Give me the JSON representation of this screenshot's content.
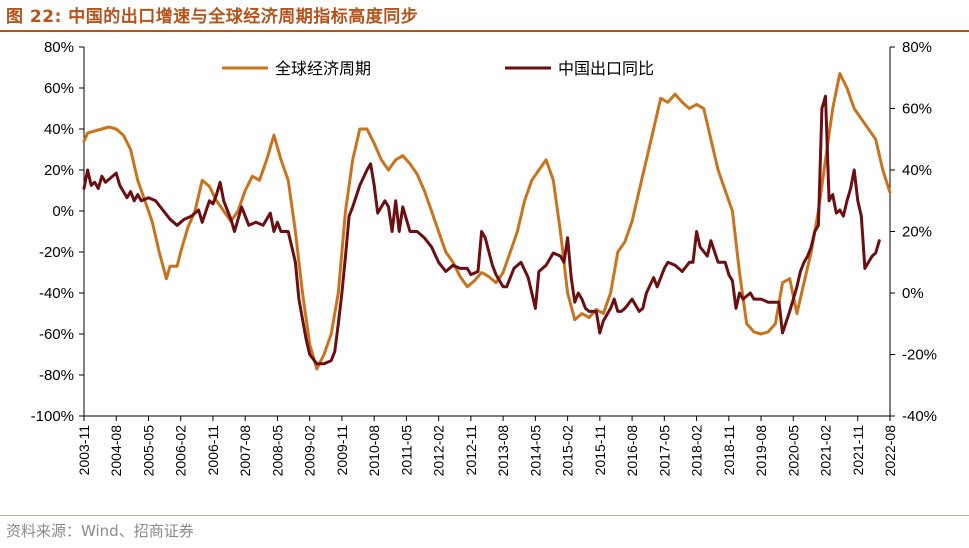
{
  "figure": {
    "title": "图 22:  中国的出口增速与全球经济周期指标高度同步",
    "source": "资料来源：Wind、招商证券"
  },
  "colors": {
    "title": "#b5531b",
    "global_cycle": "#c8731e",
    "china_exports": "#6b0f12",
    "axis": "#000000"
  },
  "chart_data": {
    "type": "line",
    "legend": {
      "position": "top"
    },
    "grid": false,
    "x_ticks": [
      "2003-11",
      "2004-08",
      "2005-05",
      "2006-02",
      "2006-11",
      "2007-08",
      "2008-05",
      "2009-02",
      "2009-11",
      "2010-08",
      "2011-05",
      "2012-02",
      "2012-11",
      "2013-08",
      "2014-05",
      "2015-02",
      "2015-11",
      "2016-08",
      "2017-05",
      "2018-02",
      "2018-11",
      "2019-08",
      "2020-05",
      "2021-02",
      "2021-11",
      "2022-08"
    ],
    "y_left": {
      "min": -100,
      "max": 80,
      "ticks": [
        "80%",
        "60%",
        "40%",
        "20%",
        "0%",
        "-20%",
        "-40%",
        "-60%",
        "-80%",
        "-100%"
      ]
    },
    "y_right": {
      "min": -40,
      "max": 80,
      "ticks": [
        "80%",
        "60%",
        "40%",
        "20%",
        "0%",
        "-20%",
        "-40%"
      ]
    },
    "series": [
      {
        "name": "全球经济周期",
        "axis": "left",
        "color": "#c8731e",
        "points": [
          [
            "2003-11",
            34
          ],
          [
            "2003-12",
            38
          ],
          [
            "2004-02",
            39
          ],
          [
            "2004-04",
            40
          ],
          [
            "2004-06",
            41
          ],
          [
            "2004-08",
            40
          ],
          [
            "2004-10",
            37
          ],
          [
            "2004-12",
            30
          ],
          [
            "2005-02",
            15
          ],
          [
            "2005-04",
            5
          ],
          [
            "2005-06",
            -5
          ],
          [
            "2005-08",
            -20
          ],
          [
            "2005-10",
            -33
          ],
          [
            "2005-11",
            -27
          ],
          [
            "2006-01",
            -27
          ],
          [
            "2006-02",
            -20
          ],
          [
            "2006-04",
            -8
          ],
          [
            "2006-06",
            0
          ],
          [
            "2006-08",
            15
          ],
          [
            "2006-10",
            12
          ],
          [
            "2006-12",
            5
          ],
          [
            "2007-02",
            0
          ],
          [
            "2007-04",
            -5
          ],
          [
            "2007-06",
            0
          ],
          [
            "2007-08",
            10
          ],
          [
            "2007-10",
            17
          ],
          [
            "2007-12",
            15
          ],
          [
            "2008-02",
            25
          ],
          [
            "2008-04",
            37
          ],
          [
            "2008-06",
            25
          ],
          [
            "2008-08",
            15
          ],
          [
            "2008-10",
            -10
          ],
          [
            "2008-12",
            -40
          ],
          [
            "2009-02",
            -65
          ],
          [
            "2009-04",
            -77
          ],
          [
            "2009-06",
            -70
          ],
          [
            "2009-08",
            -60
          ],
          [
            "2009-10",
            -40
          ],
          [
            "2009-12",
            0
          ],
          [
            "2010-02",
            25
          ],
          [
            "2010-04",
            40
          ],
          [
            "2010-06",
            40
          ],
          [
            "2010-08",
            33
          ],
          [
            "2010-10",
            25
          ],
          [
            "2010-12",
            20
          ],
          [
            "2011-02",
            25
          ],
          [
            "2011-04",
            27
          ],
          [
            "2011-06",
            23
          ],
          [
            "2011-08",
            18
          ],
          [
            "2011-10",
            10
          ],
          [
            "2011-12",
            0
          ],
          [
            "2012-02",
            -10
          ],
          [
            "2012-04",
            -20
          ],
          [
            "2012-06",
            -25
          ],
          [
            "2012-08",
            -32
          ],
          [
            "2012-10",
            -37
          ],
          [
            "2012-12",
            -34
          ],
          [
            "2013-02",
            -30
          ],
          [
            "2013-04",
            -32
          ],
          [
            "2013-06",
            -35
          ],
          [
            "2013-08",
            -30
          ],
          [
            "2013-10",
            -20
          ],
          [
            "2013-12",
            -10
          ],
          [
            "2014-02",
            5
          ],
          [
            "2014-04",
            15
          ],
          [
            "2014-06",
            20
          ],
          [
            "2014-08",
            25
          ],
          [
            "2014-10",
            15
          ],
          [
            "2014-12",
            -10
          ],
          [
            "2015-02",
            -40
          ],
          [
            "2015-04",
            -53
          ],
          [
            "2015-06",
            -50
          ],
          [
            "2015-08",
            -52
          ],
          [
            "2015-10",
            -48
          ],
          [
            "2015-12",
            -50
          ],
          [
            "2016-02",
            -40
          ],
          [
            "2016-04",
            -20
          ],
          [
            "2016-06",
            -15
          ],
          [
            "2016-08",
            -5
          ],
          [
            "2016-10",
            10
          ],
          [
            "2016-12",
            25
          ],
          [
            "2017-02",
            40
          ],
          [
            "2017-04",
            55
          ],
          [
            "2017-06",
            53
          ],
          [
            "2017-08",
            57
          ],
          [
            "2017-10",
            53
          ],
          [
            "2017-12",
            50
          ],
          [
            "2018-02",
            52
          ],
          [
            "2018-04",
            50
          ],
          [
            "2018-06",
            35
          ],
          [
            "2018-08",
            20
          ],
          [
            "2018-10",
            10
          ],
          [
            "2018-12",
            0
          ],
          [
            "2019-02",
            -30
          ],
          [
            "2019-04",
            -55
          ],
          [
            "2019-06",
            -59
          ],
          [
            "2019-08",
            -60
          ],
          [
            "2019-10",
            -59
          ],
          [
            "2019-12",
            -55
          ],
          [
            "2020-02",
            -35
          ],
          [
            "2020-04",
            -33
          ],
          [
            "2020-06",
            -50
          ],
          [
            "2020-08",
            -35
          ],
          [
            "2020-10",
            -20
          ],
          [
            "2020-12",
            0
          ],
          [
            "2021-02",
            25
          ],
          [
            "2021-04",
            50
          ],
          [
            "2021-06",
            67
          ],
          [
            "2021-08",
            60
          ],
          [
            "2021-10",
            50
          ],
          [
            "2021-12",
            45
          ],
          [
            "2022-02",
            40
          ],
          [
            "2022-04",
            35
          ],
          [
            "2022-06",
            20
          ],
          [
            "2022-08",
            9
          ]
        ]
      },
      {
        "name": "中国出口同比",
        "axis": "right",
        "color": "#6b0f12",
        "points": [
          [
            "2003-11",
            34
          ],
          [
            "2003-12",
            40
          ],
          [
            "2004-01",
            35
          ],
          [
            "2004-02",
            36
          ],
          [
            "2004-03",
            34
          ],
          [
            "2004-04",
            38
          ],
          [
            "2004-05",
            36
          ],
          [
            "2004-06",
            37
          ],
          [
            "2004-08",
            39
          ],
          [
            "2004-09",
            35
          ],
          [
            "2004-10",
            33
          ],
          [
            "2004-11",
            31
          ],
          [
            "2004-12",
            33
          ],
          [
            "2005-01",
            30
          ],
          [
            "2005-02",
            32
          ],
          [
            "2005-03",
            30
          ],
          [
            "2005-05",
            31
          ],
          [
            "2005-07",
            30
          ],
          [
            "2005-09",
            27
          ],
          [
            "2005-11",
            24
          ],
          [
            "2006-01",
            22
          ],
          [
            "2006-03",
            24
          ],
          [
            "2006-05",
            25
          ],
          [
            "2006-07",
            27
          ],
          [
            "2006-08",
            23
          ],
          [
            "2006-10",
            30
          ],
          [
            "2006-11",
            29
          ],
          [
            "2006-12",
            32
          ],
          [
            "2007-01",
            36
          ],
          [
            "2007-02",
            30
          ],
          [
            "2007-04",
            24
          ],
          [
            "2007-05",
            20
          ],
          [
            "2007-07",
            28
          ],
          [
            "2007-08",
            25
          ],
          [
            "2007-09",
            22
          ],
          [
            "2007-11",
            23
          ],
          [
            "2008-01",
            22
          ],
          [
            "2008-03",
            26
          ],
          [
            "2008-04",
            20
          ],
          [
            "2008-05",
            23
          ],
          [
            "2008-06",
            20
          ],
          [
            "2008-08",
            20
          ],
          [
            "2008-10",
            10
          ],
          [
            "2008-11",
            -2
          ],
          [
            "2009-01",
            -15
          ],
          [
            "2009-02",
            -20
          ],
          [
            "2009-04",
            -23
          ],
          [
            "2009-06",
            -23
          ],
          [
            "2009-08",
            -22
          ],
          [
            "2009-09",
            -19
          ],
          [
            "2009-10",
            -10
          ],
          [
            "2009-11",
            0
          ],
          [
            "2009-12",
            12
          ],
          [
            "2010-01",
            25
          ],
          [
            "2010-02",
            28
          ],
          [
            "2010-04",
            35
          ],
          [
            "2010-06",
            40
          ],
          [
            "2010-07",
            42
          ],
          [
            "2010-08",
            35
          ],
          [
            "2010-09",
            26
          ],
          [
            "2010-11",
            30
          ],
          [
            "2010-12",
            28
          ],
          [
            "2011-01",
            20
          ],
          [
            "2011-02",
            30
          ],
          [
            "2011-03",
            20
          ],
          [
            "2011-04",
            28
          ],
          [
            "2011-06",
            20
          ],
          [
            "2011-08",
            20
          ],
          [
            "2011-10",
            18
          ],
          [
            "2011-12",
            15
          ],
          [
            "2012-02",
            10
          ],
          [
            "2012-04",
            7
          ],
          [
            "2012-06",
            9
          ],
          [
            "2012-08",
            8
          ],
          [
            "2012-10",
            8
          ],
          [
            "2012-11",
            6
          ],
          [
            "2013-01",
            7
          ],
          [
            "2013-02",
            20
          ],
          [
            "2013-03",
            18
          ],
          [
            "2013-05",
            9
          ],
          [
            "2013-06",
            6
          ],
          [
            "2013-08",
            2
          ],
          [
            "2013-09",
            2
          ],
          [
            "2013-11",
            8
          ],
          [
            "2014-01",
            10
          ],
          [
            "2014-03",
            5
          ],
          [
            "2014-04",
            0
          ],
          [
            "2014-05",
            -5
          ],
          [
            "2014-06",
            7
          ],
          [
            "2014-08",
            9
          ],
          [
            "2014-10",
            13
          ],
          [
            "2014-12",
            12
          ],
          [
            "2015-01",
            10
          ],
          [
            "2015-02",
            18
          ],
          [
            "2015-03",
            5
          ],
          [
            "2015-04",
            -3
          ],
          [
            "2015-05",
            0
          ],
          [
            "2015-06",
            -2
          ],
          [
            "2015-07",
            -5
          ],
          [
            "2015-08",
            -6
          ],
          [
            "2015-10",
            -6
          ],
          [
            "2015-11",
            -13
          ],
          [
            "2015-12",
            -9
          ],
          [
            "2016-02",
            -5
          ],
          [
            "2016-03",
            -2
          ],
          [
            "2016-04",
            -6
          ],
          [
            "2016-05",
            -6
          ],
          [
            "2016-06",
            -5
          ],
          [
            "2016-08",
            -2
          ],
          [
            "2016-10",
            -6
          ],
          [
            "2016-11",
            -5
          ],
          [
            "2016-12",
            0
          ],
          [
            "2017-02",
            5
          ],
          [
            "2017-03",
            2
          ],
          [
            "2017-05",
            8
          ],
          [
            "2017-06",
            10
          ],
          [
            "2017-08",
            9
          ],
          [
            "2017-10",
            7
          ],
          [
            "2017-12",
            10
          ],
          [
            "2018-01",
            10
          ],
          [
            "2018-02",
            20
          ],
          [
            "2018-03",
            15
          ],
          [
            "2018-05",
            12
          ],
          [
            "2018-06",
            17
          ],
          [
            "2018-08",
            10
          ],
          [
            "2018-10",
            10
          ],
          [
            "2018-11",
            6
          ],
          [
            "2018-12",
            4
          ],
          [
            "2019-01",
            -5
          ],
          [
            "2019-02",
            0
          ],
          [
            "2019-03",
            -2
          ],
          [
            "2019-05",
            0
          ],
          [
            "2019-06",
            -2
          ],
          [
            "2019-08",
            -2
          ],
          [
            "2019-10",
            -3
          ],
          [
            "2019-12",
            -3
          ],
          [
            "2020-01",
            -3
          ],
          [
            "2020-02",
            -13
          ],
          [
            "2020-04",
            -6
          ],
          [
            "2020-05",
            -2
          ],
          [
            "2020-06",
            2
          ],
          [
            "2020-07",
            7
          ],
          [
            "2020-08",
            10
          ],
          [
            "2020-09",
            12
          ],
          [
            "2020-10",
            15
          ],
          [
            "2020-11",
            20
          ],
          [
            "2020-12",
            22
          ],
          [
            "2021-01",
            60
          ],
          [
            "2021-02",
            64
          ],
          [
            "2021-03",
            30
          ],
          [
            "2021-04",
            32
          ],
          [
            "2021-05",
            26
          ],
          [
            "2021-06",
            27
          ],
          [
            "2021-07",
            25
          ],
          [
            "2021-08",
            30
          ],
          [
            "2021-09",
            34
          ],
          [
            "2021-10",
            40
          ],
          [
            "2021-11",
            30
          ],
          [
            "2021-12",
            25
          ],
          [
            "2022-01",
            8
          ],
          [
            "2022-02",
            10
          ],
          [
            "2022-03",
            12
          ],
          [
            "2022-04",
            13
          ],
          [
            "2022-05",
            17
          ]
        ]
      }
    ]
  }
}
